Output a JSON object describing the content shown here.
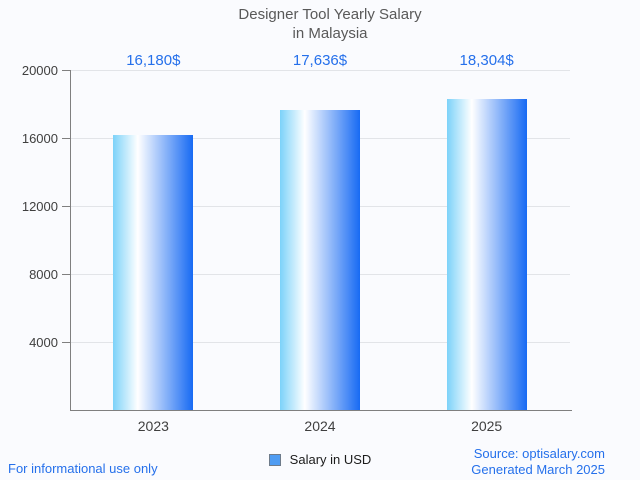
{
  "title": {
    "line1": "Designer Tool Yearly Salary",
    "line2": "in Malaysia"
  },
  "legend": {
    "label": "Salary in USD"
  },
  "footer": {
    "left": "For informational use only",
    "source": "Source: optisalary.com",
    "generated": "Generated March 2025"
  },
  "colors": {
    "background": "#fafbfe",
    "accent_blue": "#2570eb",
    "bar_gradient_left": "#7cd2f9",
    "bar_gradient_mid": "#ffffff",
    "bar_gradient_right": "#176af3",
    "gridline": "#e2e4e8",
    "axis": "#7f7f7f",
    "title_gray": "#595959",
    "label_gray": "#3f3f3f",
    "legend_fill": "#4f9cf2",
    "legend_border": "#6e7b8a"
  },
  "chart_data": {
    "type": "bar",
    "title": "Designer Tool Yearly Salary in Malaysia",
    "categories": [
      "2023",
      "2024",
      "2025"
    ],
    "series": [
      {
        "name": "Salary in USD",
        "values": [
          16180,
          17636,
          18304
        ]
      }
    ],
    "value_labels": [
      "16,180$",
      "17,636$",
      "18,304$"
    ],
    "xlabel": "",
    "ylabel": "",
    "ylim": [
      0,
      20000
    ],
    "yticks": [
      4000,
      8000,
      12000,
      16000,
      20000
    ],
    "ytick_labels": [
      "4000",
      "8000",
      "12000",
      "16000",
      "20000"
    ],
    "grid": true,
    "legend_position": "bottom"
  }
}
